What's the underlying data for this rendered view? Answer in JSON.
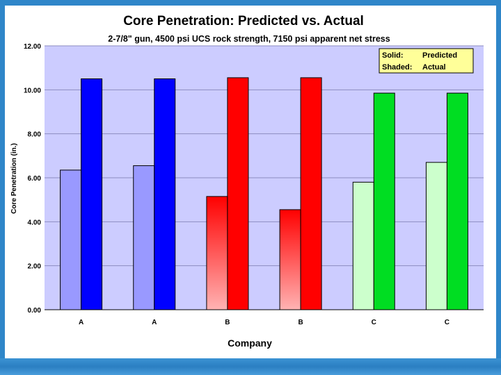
{
  "chart_data": {
    "type": "bar",
    "title": "Core Penetration: Predicted vs. Actual",
    "subtitle": "2-7/8\" gun, 4500 psi UCS rock strength, 7150 psi apparent net stress",
    "xlabel": "Company",
    "ylabel": "Core Penetration (in.)",
    "categories": [
      "A",
      "A",
      "B",
      "B",
      "C",
      "C"
    ],
    "series": [
      {
        "name": "Actual",
        "style": "Shaded",
        "values": [
          6.35,
          6.55,
          5.15,
          4.55,
          5.8,
          6.7
        ]
      },
      {
        "name": "Predicted",
        "style": "Solid",
        "values": [
          10.5,
          10.5,
          10.55,
          10.55,
          9.85,
          9.85
        ]
      }
    ],
    "ylim": [
      0,
      12
    ],
    "yticks": [
      "0.00",
      "2.00",
      "4.00",
      "6.00",
      "8.00",
      "10.00",
      "12.00"
    ],
    "grid": true,
    "legend": {
      "position": "top-right",
      "rows": [
        {
          "key": "Solid:",
          "label": "Predicted"
        },
        {
          "key": "Shaded:",
          "label": "Actual"
        }
      ]
    },
    "colors": {
      "plot_background": "#ccccff",
      "A_solid": "#0000ff",
      "A_shaded": "#9999ff",
      "B_solid": "#ff0000",
      "B_shaded_top": "#ff0000",
      "B_shaded_bottom": "#ffb3b3",
      "C_solid": "#00dd22",
      "C_shaded": "#ccffcc",
      "legend_background": "#ffff99"
    }
  }
}
